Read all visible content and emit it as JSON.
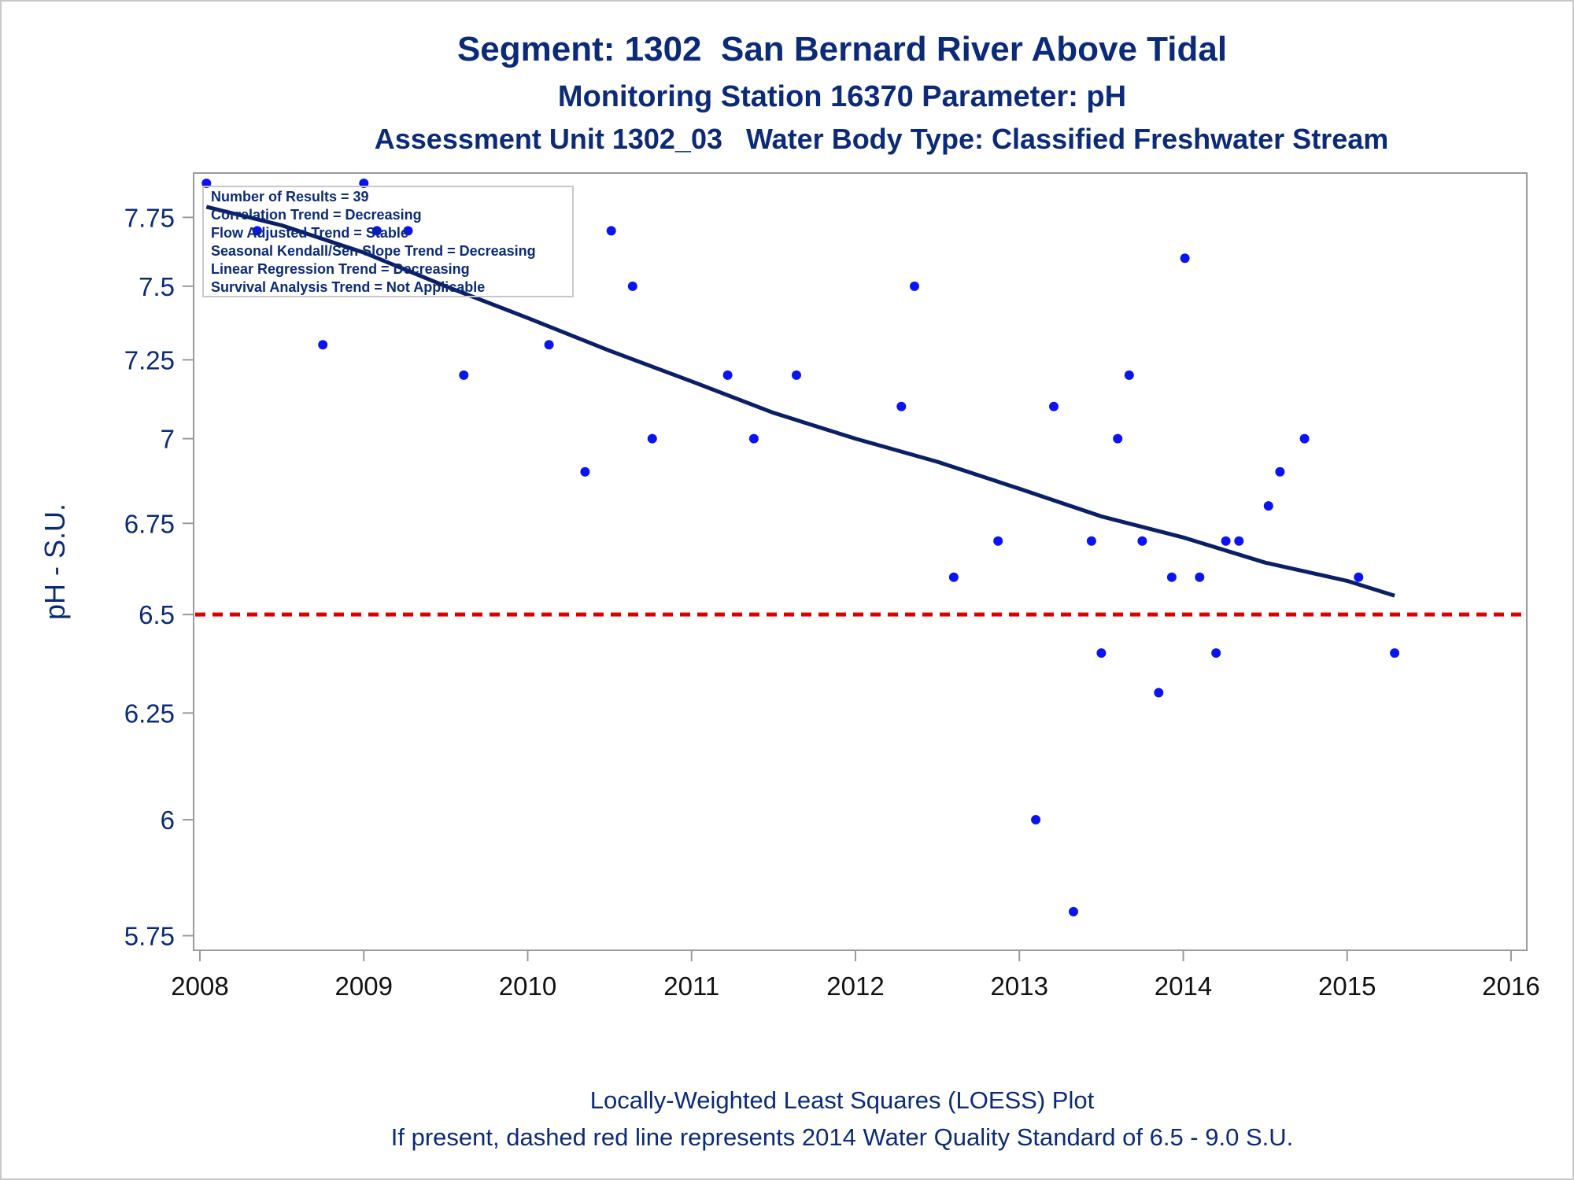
{
  "titles": {
    "title": "Segment: 1302  San Bernard River Above Tidal",
    "subtitle": "Monitoring Station 16370 Parameter: pH",
    "subtitle2": "Assessment Unit 1302_03   Water Body Type: Classified Freshwater Stream"
  },
  "footnotes": {
    "line1": "Locally-Weighted Least Squares (LOESS) Plot",
    "line2": "If present, dashed red line represents 2014 Water Quality Standard of 6.5 - 9.0 S.U."
  },
  "legend": {
    "lines": [
      "Number of Results = 39",
      "Correlation Trend = Decreasing",
      "Flow Adjusted Trend = Stable",
      "Seasonal Kendall/Sen Slope Trend = Decreasing",
      "Linear Regression Trend = Decreasing",
      "Survival Analysis Trend = Not Applicable"
    ]
  },
  "colors": {
    "text": "#0b2a78",
    "points": "#0a14f0",
    "trend_line": "#0b1f66",
    "standard_line": "#dd0000",
    "axis": "#9a9a9a"
  },
  "chart_data": {
    "type": "scatter",
    "title": "Segment: 1302  San Bernard River Above Tidal",
    "xlabel": "",
    "ylabel": "pH - S.U.",
    "xlim": [
      2008,
      2016
    ],
    "ylim": [
      5.72,
      7.92
    ],
    "y_scale": "reciprocal",
    "xticks": [
      2008,
      2009,
      2010,
      2011,
      2012,
      2013,
      2014,
      2015,
      2016
    ],
    "yticks": [
      5.75,
      6,
      6.25,
      6.5,
      6.75,
      7,
      7.25,
      7.5,
      7.75
    ],
    "ytick_labels": [
      "5.75",
      "6",
      "6.25",
      "6.5",
      "6.75",
      "7",
      "7.25",
      "7.5",
      "7.75"
    ],
    "grid": false,
    "legend_position": "top-left",
    "series": [
      {
        "type": "scatter",
        "points": [
          [
            2008.04,
            7.88
          ],
          [
            2008.35,
            7.7
          ],
          [
            2008.75,
            7.3
          ],
          [
            2009.0,
            7.88
          ],
          [
            2009.08,
            7.7
          ],
          [
            2009.27,
            7.7
          ],
          [
            2009.61,
            7.2
          ],
          [
            2010.13,
            7.3
          ],
          [
            2010.35,
            6.9
          ],
          [
            2010.51,
            7.7
          ],
          [
            2010.64,
            7.5
          ],
          [
            2010.76,
            7.0
          ],
          [
            2011.22,
            7.2
          ],
          [
            2011.38,
            7.0
          ],
          [
            2011.64,
            7.2
          ],
          [
            2012.28,
            7.1
          ],
          [
            2012.36,
            7.5
          ],
          [
            2012.6,
            6.6
          ],
          [
            2012.87,
            6.7
          ],
          [
            2013.1,
            6.0
          ],
          [
            2013.21,
            7.1
          ],
          [
            2013.33,
            5.8
          ],
          [
            2013.44,
            6.7
          ],
          [
            2013.5,
            6.4
          ],
          [
            2013.6,
            7.0
          ],
          [
            2013.67,
            7.2
          ],
          [
            2013.75,
            6.7
          ],
          [
            2013.85,
            6.3
          ],
          [
            2013.93,
            6.6
          ],
          [
            2014.01,
            7.6
          ],
          [
            2014.1,
            6.6
          ],
          [
            2014.2,
            6.4
          ],
          [
            2014.26,
            6.7
          ],
          [
            2014.34,
            6.7
          ],
          [
            2014.52,
            6.8
          ],
          [
            2014.59,
            6.9
          ],
          [
            2014.74,
            7.0
          ],
          [
            2015.07,
            6.6
          ],
          [
            2015.29,
            6.4
          ]
        ]
      },
      {
        "type": "line",
        "points": [
          [
            2008.04,
            7.79
          ],
          [
            2008.5,
            7.72
          ],
          [
            2009.0,
            7.62
          ],
          [
            2009.5,
            7.5
          ],
          [
            2010.0,
            7.39
          ],
          [
            2010.5,
            7.28
          ],
          [
            2011.0,
            7.18
          ],
          [
            2011.5,
            7.08
          ],
          [
            2012.0,
            7.0
          ],
          [
            2012.5,
            6.93
          ],
          [
            2013.0,
            6.85
          ],
          [
            2013.5,
            6.77
          ],
          [
            2014.0,
            6.71
          ],
          [
            2014.5,
            6.64
          ],
          [
            2015.0,
            6.59
          ],
          [
            2015.29,
            6.55
          ]
        ]
      },
      {
        "type": "hline",
        "y": 6.5
      }
    ]
  }
}
